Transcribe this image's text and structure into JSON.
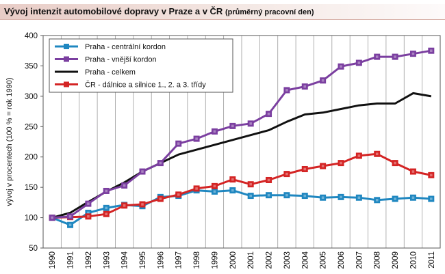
{
  "header": {
    "title": "Vývoj intenzit automobilové dopravy v Praze a v ČR",
    "subtitle": "(průměrný pracovní den)"
  },
  "chart_data": {
    "type": "line",
    "title": "Vývoj intenzit automobilové dopravy v Praze a v ČR (průměrný pracovní den)",
    "xlabel": "",
    "ylabel": "vývoj v procentech (100 % = rok 1990)",
    "ylim": [
      50,
      400
    ],
    "yticks": [
      50,
      100,
      150,
      200,
      250,
      300,
      350,
      400
    ],
    "grid": "vertical",
    "legend_position": "top-left",
    "categories": [
      "1990",
      "1991",
      "1992",
      "1993",
      "1994",
      "1995",
      "1996",
      "1997",
      "1998",
      "1999",
      "2000",
      "2001",
      "2002",
      "2003",
      "2004",
      "2005",
      "2006",
      "2007",
      "2008",
      "2009",
      "2010",
      "2011"
    ],
    "series": [
      {
        "name": "Praha - centrální kordon",
        "color": "#1f87c0",
        "marker": "square",
        "values": [
          100,
          88,
          108,
          116,
          121,
          119,
          134,
          136,
          145,
          143,
          145,
          136,
          137,
          137,
          136,
          133,
          134,
          133,
          129,
          131,
          133,
          131
        ]
      },
      {
        "name": "Praha - vnější kordon",
        "color": "#7b3fa0",
        "marker": "square",
        "values": [
          100,
          102,
          123,
          144,
          153,
          176,
          190,
          222,
          230,
          242,
          251,
          255,
          271,
          310,
          316,
          326,
          349,
          355,
          365,
          365,
          370,
          375
        ]
      },
      {
        "name": "Praha - celkem",
        "color": "#111111",
        "marker": "none",
        "values": [
          100,
          108,
          126,
          143,
          158,
          176,
          190,
          204,
          212,
          220,
          228,
          236,
          244,
          258,
          270,
          273,
          279,
          285,
          288,
          288,
          305,
          300
        ]
      },
      {
        "name": "ČR - dálnice a silnice 1., 2. a 3. třídy",
        "color": "#d42424",
        "marker": "square",
        "values": [
          100,
          101,
          102,
          106,
          120,
          122,
          131,
          138,
          148,
          152,
          163,
          155,
          162,
          172,
          180,
          185,
          190,
          202,
          205,
          190,
          176,
          170
        ]
      }
    ]
  }
}
